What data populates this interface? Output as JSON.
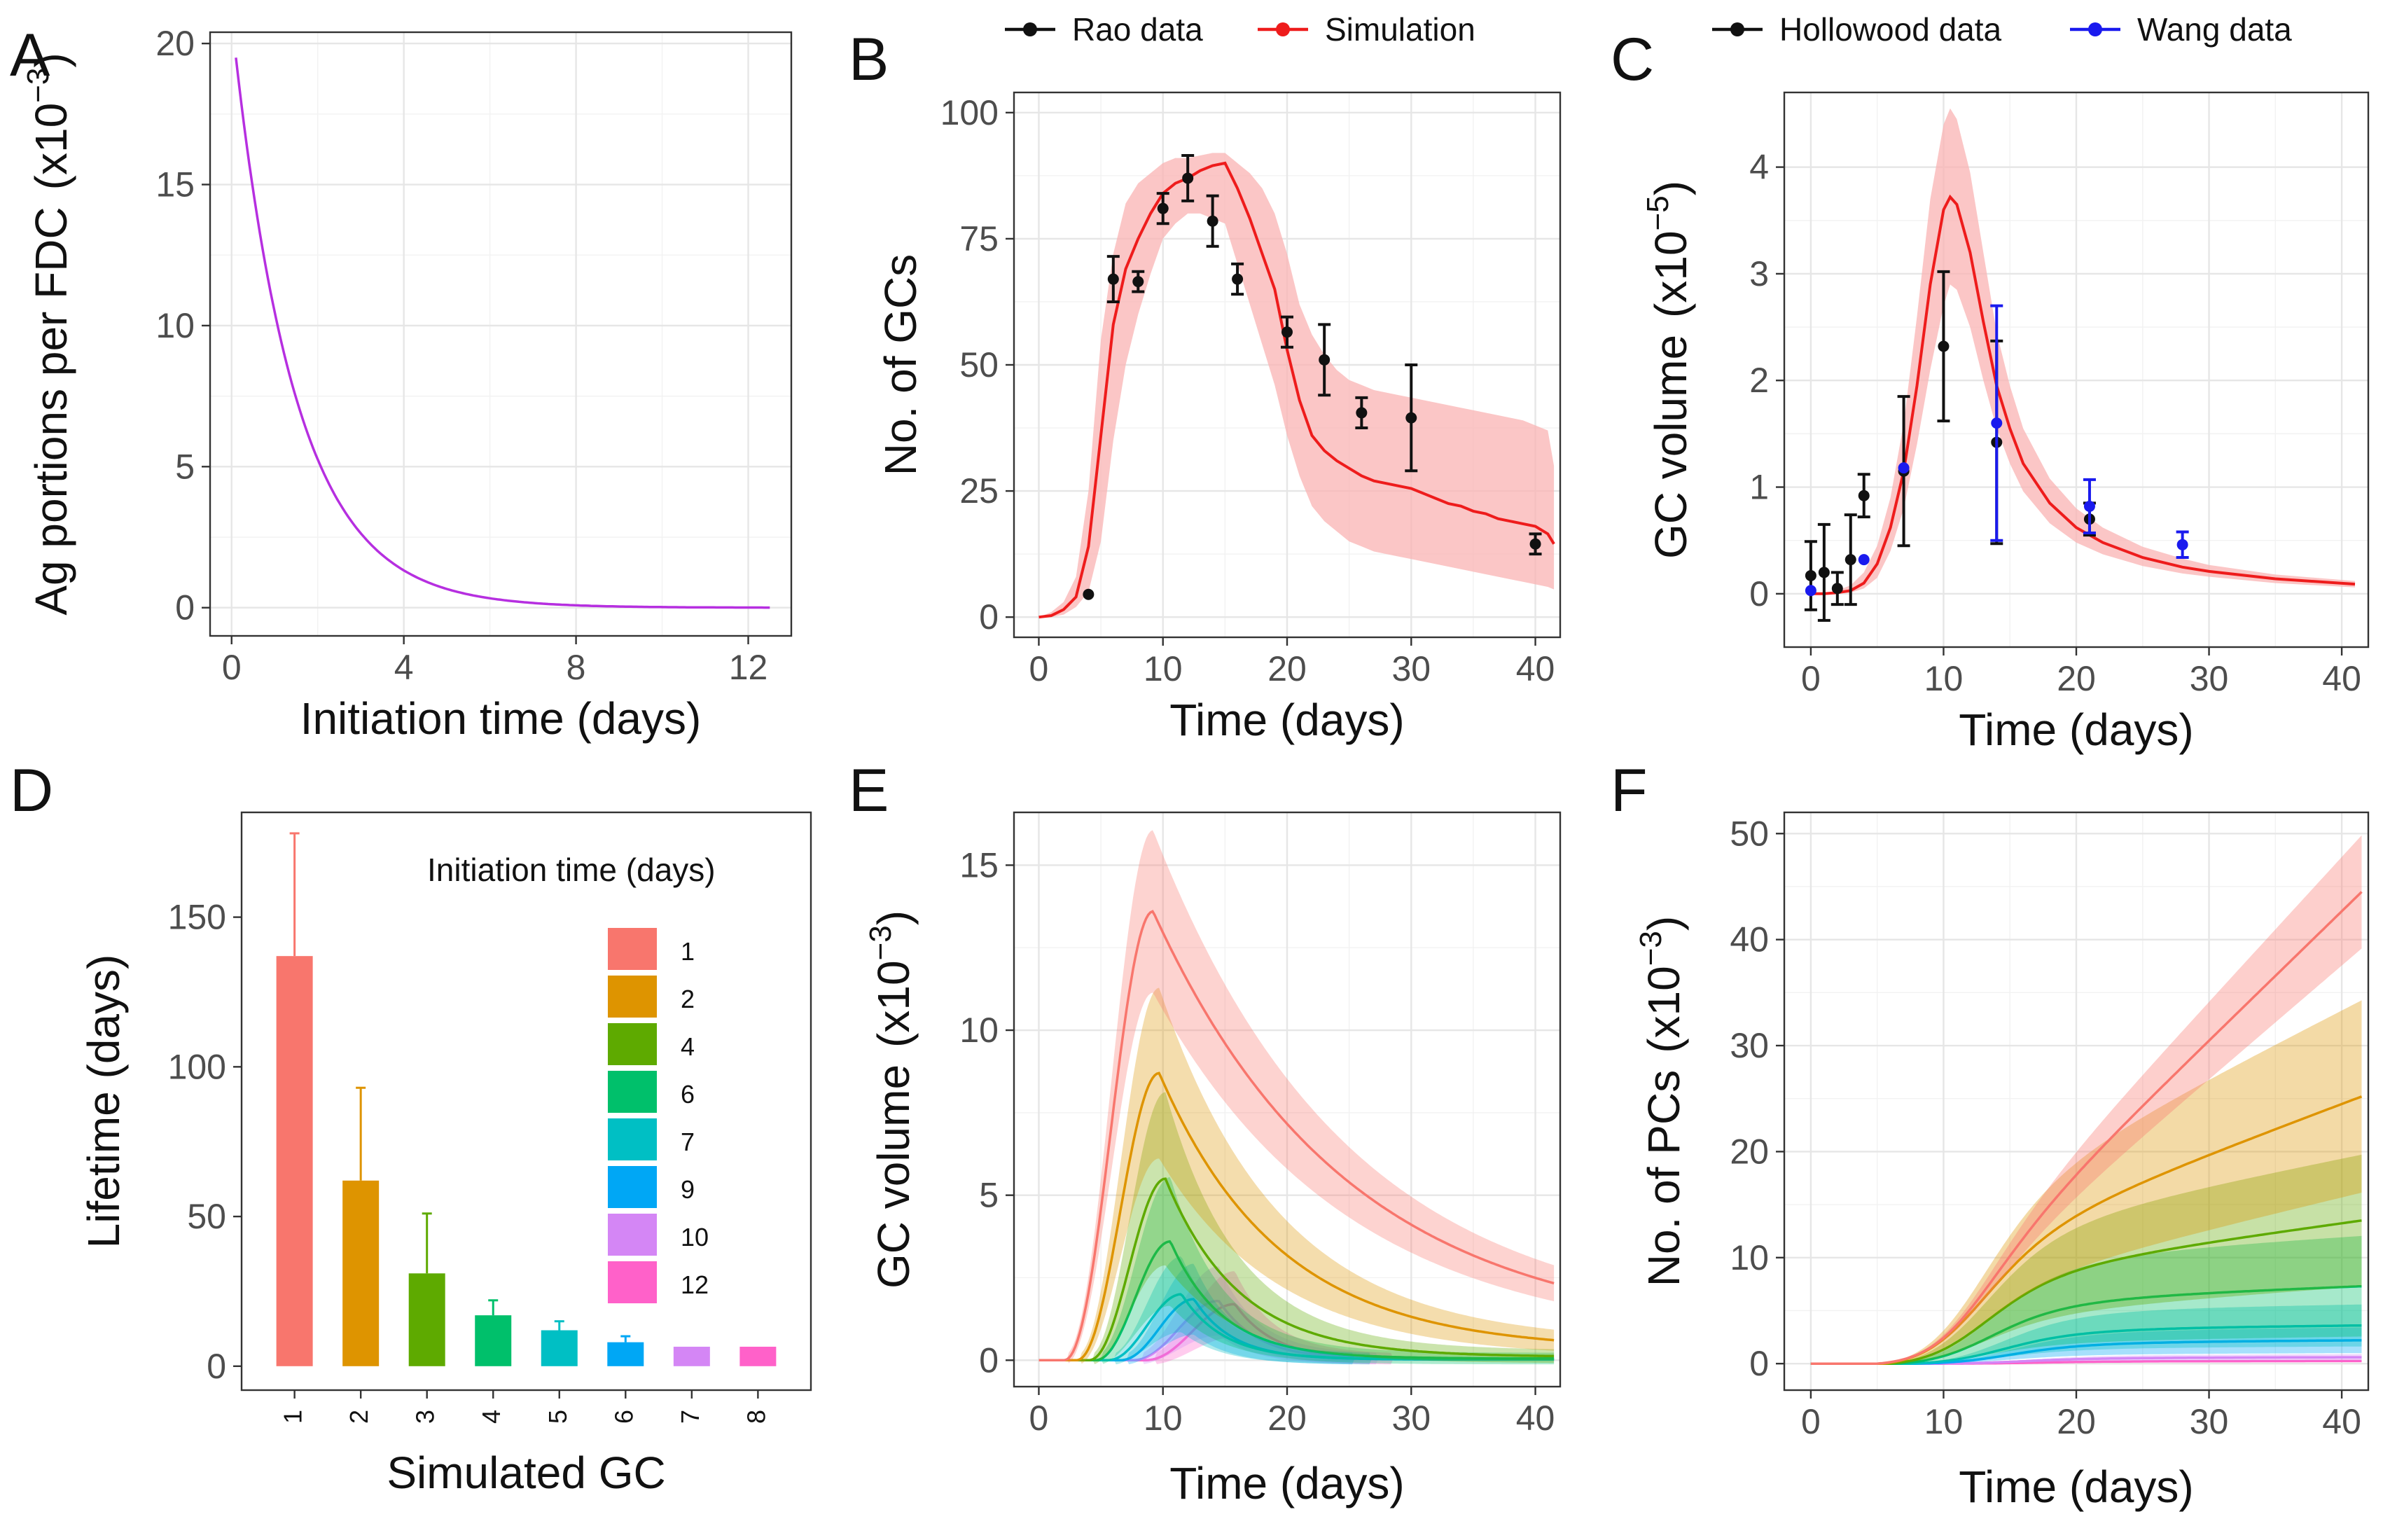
{
  "figure": {
    "panel_labels": [
      "A",
      "B",
      "C",
      "D",
      "E",
      "F"
    ]
  },
  "chart_data": [
    {
      "panel": "A",
      "type": "line",
      "title": "",
      "xlabel": "Initiation time (days)",
      "ylabel": "Ag portions per FDC",
      "ylabel_unit": "(x10",
      "ylabel_exp": "−3",
      "ylabel_close": ")",
      "xlim": [
        -0.5,
        13.0
      ],
      "ylim": [
        -1.0,
        20.4
      ],
      "xticks": [
        0,
        4,
        8,
        12
      ],
      "xtick_labels": [
        "0",
        "4",
        "8",
        "12"
      ],
      "yticks": [
        0,
        5,
        10,
        15,
        20
      ],
      "ytick_labels": [
        "0",
        "5",
        "10",
        "15",
        "20"
      ],
      "grid": true,
      "series": [
        {
          "name": "Ag portions",
          "color": "#b62fe0",
          "model": "exponential_decay",
          "y0": 19.5,
          "rate_per_day": 0.69,
          "x_start": 0.1,
          "x_end": 12.5
        }
      ]
    },
    {
      "panel": "B",
      "type": "line",
      "title": "",
      "xlabel": "Time (days)",
      "ylabel": "No. of GCs",
      "xlim": [
        -2,
        42
      ],
      "ylim": [
        -4,
        104
      ],
      "xticks": [
        0,
        10,
        20,
        30,
        40
      ],
      "xtick_labels": [
        "0",
        "10",
        "20",
        "30",
        "40"
      ],
      "yticks": [
        0,
        25,
        50,
        75,
        100
      ],
      "ytick_labels": [
        "0",
        "25",
        "50",
        "75",
        "100"
      ],
      "grid": true,
      "legend": {
        "position": "top",
        "entries": [
          "Rao data",
          "Simulation"
        ]
      },
      "series": [
        {
          "name": "Simulation",
          "color": "#ee1c1c",
          "band_color": "#f9b3b3",
          "x": [
            0,
            1,
            2,
            3,
            4,
            5,
            6,
            7,
            8,
            9,
            10,
            11,
            12,
            13,
            14,
            15,
            16,
            17,
            18,
            19,
            20,
            21,
            22,
            23,
            24,
            25,
            26,
            27,
            28,
            29,
            30,
            31,
            32,
            33,
            34,
            35,
            36,
            37,
            38,
            39,
            40,
            41,
            41.5
          ],
          "y": [
            0,
            0.3,
            1.5,
            4,
            14,
            36,
            58,
            69,
            75,
            80,
            84,
            86,
            87,
            88.5,
            89.5,
            90,
            85,
            79,
            72,
            65,
            53,
            43,
            36,
            33,
            31,
            29.5,
            28,
            27,
            26.5,
            26,
            25.5,
            24.5,
            23.5,
            22.5,
            22,
            21,
            20.5,
            19.5,
            19,
            18.5,
            18,
            16.5,
            14.5
          ],
          "lower": [
            0,
            0,
            0.5,
            2,
            5,
            15,
            35,
            50,
            60,
            68,
            75,
            78,
            80,
            80,
            79,
            78,
            70,
            62,
            54,
            46,
            36,
            28,
            22,
            19,
            17,
            15,
            14,
            13,
            12.5,
            12,
            11.5,
            11,
            10.5,
            10,
            9.5,
            9,
            8.5,
            8,
            7.5,
            7,
            6.5,
            6,
            5.5
          ],
          "upper": [
            0,
            1,
            3,
            8,
            25,
            55,
            72,
            82,
            86,
            88,
            90,
            91,
            91,
            91.5,
            92,
            92,
            90,
            88,
            85,
            80,
            72,
            62,
            56,
            52,
            49,
            47,
            46,
            45,
            44.5,
            44,
            43.5,
            43,
            42.5,
            42,
            41.5,
            41,
            40.5,
            40,
            39.5,
            39,
            38,
            37,
            30
          ]
        },
        {
          "name": "Rao data",
          "color": "#111111",
          "kind": "points_with_errorbars",
          "x": [
            4,
            6,
            8,
            10,
            12,
            14,
            16,
            20,
            23,
            26,
            30,
            40
          ],
          "y": [
            4.5,
            67,
            66.5,
            81,
            87,
            78.5,
            67,
            56.5,
            51,
            40.5,
            39.5,
            14.5
          ],
          "err": [
            0,
            4.5,
            2,
            3,
            4.5,
            5,
            3,
            3,
            7,
            3,
            10.5,
            2
          ]
        }
      ]
    },
    {
      "panel": "C",
      "type": "line",
      "title": "",
      "xlabel": "Time (days)",
      "ylabel": "GC volume",
      "ylabel_unit": "(x10",
      "ylabel_exp": "−5",
      "ylabel_close": ")",
      "xlim": [
        -2,
        42
      ],
      "ylim": [
        -0.5,
        4.7
      ],
      "xticks": [
        0,
        10,
        20,
        30,
        40
      ],
      "xtick_labels": [
        "0",
        "10",
        "20",
        "30",
        "40"
      ],
      "yticks": [
        0,
        1,
        2,
        3,
        4
      ],
      "ytick_labels": [
        "0",
        "1",
        "2",
        "3",
        "4"
      ],
      "grid": true,
      "legend": {
        "position": "top",
        "entries": [
          "Hollowood data",
          "Wang data"
        ]
      },
      "series": [
        {
          "name": "Simulation",
          "color": "#ee1c1c",
          "band_color": "#f9b3b3",
          "x": [
            0,
            1,
            2,
            3,
            4,
            5,
            6,
            7,
            8,
            9,
            10,
            10.5,
            11,
            12,
            13,
            14,
            15,
            16,
            18,
            20,
            22,
            25,
            28,
            30,
            35,
            41
          ],
          "y": [
            0,
            0,
            0.01,
            0.03,
            0.1,
            0.28,
            0.62,
            1.15,
            1.95,
            2.9,
            3.6,
            3.72,
            3.65,
            3.2,
            2.55,
            1.95,
            1.55,
            1.22,
            0.85,
            0.62,
            0.48,
            0.34,
            0.25,
            0.21,
            0.14,
            0.09
          ],
          "lower": [
            0,
            0,
            0,
            0.01,
            0.05,
            0.15,
            0.4,
            0.8,
            1.4,
            2.1,
            2.7,
            2.9,
            2.85,
            2.5,
            2.0,
            1.55,
            1.22,
            0.96,
            0.66,
            0.48,
            0.37,
            0.26,
            0.19,
            0.16,
            0.1,
            0.06
          ],
          "upper": [
            0,
            0,
            0.03,
            0.08,
            0.2,
            0.45,
            0.9,
            1.6,
            2.6,
            3.7,
            4.4,
            4.55,
            4.45,
            3.95,
            3.2,
            2.45,
            1.95,
            1.55,
            1.08,
            0.8,
            0.62,
            0.44,
            0.33,
            0.27,
            0.18,
            0.12
          ]
        },
        {
          "name": "Hollowood data",
          "color": "#111111",
          "kind": "points_with_errorbars",
          "x": [
            0,
            1,
            2,
            3,
            4,
            7,
            10,
            14,
            21
          ],
          "y": [
            0.17,
            0.2,
            0.05,
            0.32,
            0.92,
            1.15,
            2.32,
            1.42,
            0.7
          ],
          "err": [
            0.32,
            0.45,
            0.15,
            0.42,
            0.2,
            0.7,
            0.7,
            0.95,
            0.15
          ]
        },
        {
          "name": "Wang data",
          "color": "#1a1aee",
          "kind": "points_with_errorbars",
          "x": [
            0,
            4,
            7,
            14,
            21,
            28
          ],
          "y": [
            0.03,
            0.32,
            1.18,
            1.6,
            0.82,
            0.46
          ],
          "err": [
            0,
            0,
            0,
            1.1,
            0.25,
            0.12
          ]
        }
      ]
    },
    {
      "panel": "D",
      "type": "bar",
      "title": "",
      "xlabel": "Simulated GC",
      "ylabel": "Lifetime (days)",
      "ylim": [
        -8,
        185
      ],
      "categories": [
        "1",
        "2",
        "3",
        "4",
        "5",
        "6",
        "7",
        "8"
      ],
      "values": [
        137,
        62,
        31,
        17,
        12,
        8,
        6.5,
        6.5
      ],
      "errors": [
        41,
        31,
        20,
        5,
        3,
        2,
        0,
        0
      ],
      "colors": [
        "#f8766d",
        "#de9400",
        "#5eaa00",
        "#00c06b",
        "#00bfc4",
        "#00a7f5",
        "#d486f5",
        "#ff61c9"
      ],
      "yticks": [
        0,
        50,
        100,
        150
      ],
      "ytick_labels": [
        "0",
        "50",
        "100",
        "150"
      ],
      "grid": false,
      "legend": {
        "title": "Initiation time (days)",
        "position": "top-right",
        "entries": [
          "1",
          "2",
          "4",
          "6",
          "7",
          "9",
          "10",
          "12"
        ],
        "colors": [
          "#f8766d",
          "#de9400",
          "#5eaa00",
          "#00c06b",
          "#00bfc4",
          "#00a7f5",
          "#d486f5",
          "#ff61c9"
        ]
      }
    },
    {
      "panel": "E",
      "type": "line",
      "title": "",
      "xlabel": "Time (days)",
      "ylabel": "GC volume",
      "ylabel_unit": "(x10",
      "ylabel_exp": "−3",
      "ylabel_close": ")",
      "xlim": [
        -2,
        42
      ],
      "ylim": [
        -0.8,
        16.6
      ],
      "xticks": [
        0,
        10,
        20,
        30,
        40
      ],
      "xtick_labels": [
        "0",
        "10",
        "20",
        "30",
        "40"
      ],
      "yticks": [
        0,
        5,
        10,
        15
      ],
      "ytick_labels": [
        "0",
        "5",
        "10",
        "15"
      ],
      "grid": true,
      "series": [
        {
          "name": "1",
          "color": "#f8766d",
          "onset": 2.0,
          "peak_time": 9.2,
          "peak": 13.6,
          "decay": 0.064,
          "floor": 0.7,
          "band": 0.17
        },
        {
          "name": "2",
          "color": "#de9400",
          "onset": 3.0,
          "peak_time": 9.7,
          "peak": 8.7,
          "decay": 0.104,
          "floor": 0.3,
          "band": 0.28
        },
        {
          "name": "4",
          "color": "#5eaa00",
          "onset": 4.0,
          "peak_time": 10.2,
          "peak": 5.5,
          "decay": 0.17,
          "floor": 0.1,
          "band": 0.45
        },
        {
          "name": "6",
          "color": "#00c06b",
          "onset": 4.5,
          "peak_time": 10.6,
          "peak": 3.6,
          "decay": 0.24,
          "floor": 0.05,
          "band": 0.5
        },
        {
          "name": "7",
          "color": "#00bfc4",
          "onset": 5.5,
          "peak_time": 11.5,
          "peak": 2.0,
          "decay": 0.3,
          "floor": 0.03,
          "band": 0.5
        },
        {
          "name": "9",
          "color": "#00a7f5",
          "onset": 6.5,
          "peak_time": 12.5,
          "peak": 1.85,
          "decay": 0.32,
          "floor": 0.02,
          "band": 0.5
        },
        {
          "name": "10",
          "color": "#d486f5",
          "onset": 7.5,
          "peak_time": 14.5,
          "peak": 1.8,
          "decay": 0.32,
          "floor": 0.02,
          "band": 0.5
        },
        {
          "name": "12",
          "color": "#ff61c9",
          "onset": 8.5,
          "peak_time": 15.8,
          "peak": 1.7,
          "decay": 0.32,
          "floor": 0.02,
          "band": 0.5
        }
      ]
    },
    {
      "panel": "F",
      "type": "line",
      "title": "",
      "xlabel": "Time (days)",
      "ylabel": "No. of PCs",
      "ylabel_unit": "(x10",
      "ylabel_exp": "−3",
      "ylabel_close": ")",
      "xlim": [
        -2,
        42
      ],
      "ylim": [
        -2.5,
        52
      ],
      "xticks": [
        0,
        10,
        20,
        30,
        40
      ],
      "xtick_labels": [
        "0",
        "10",
        "20",
        "30",
        "40"
      ],
      "yticks": [
        0,
        10,
        20,
        30,
        40,
        50
      ],
      "ytick_labels": [
        "0",
        "10",
        "20",
        "30",
        "40",
        "50"
      ],
      "grid": true,
      "series": [
        {
          "name": "1",
          "color": "#f8766d",
          "final": 44.5,
          "onset": 5.0,
          "shape": 0.0,
          "band": 0.12
        },
        {
          "name": "2",
          "color": "#de9400",
          "final": 25.2,
          "onset": 5.5,
          "shape": 0.6,
          "band": 0.36
        },
        {
          "name": "4",
          "color": "#5eaa00",
          "final": 13.5,
          "onset": 6.0,
          "shape": 1.0,
          "band": 0.46
        },
        {
          "name": "6",
          "color": "#00c06b",
          "final": 7.3,
          "onset": 6.5,
          "shape": 1.4,
          "band": 0.65
        },
        {
          "name": "7",
          "color": "#00bfc4",
          "final": 3.6,
          "onset": 7.5,
          "shape": 1.6,
          "band": 0.55
        },
        {
          "name": "9",
          "color": "#00a7f5",
          "final": 2.2,
          "onset": 8.0,
          "shape": 1.6,
          "band": 0.55
        },
        {
          "name": "10",
          "color": "#d486f5",
          "final": 0.6,
          "onset": 9.0,
          "shape": 1.6,
          "band": 0.5
        },
        {
          "name": "12",
          "color": "#ff61c9",
          "final": 0.25,
          "onset": 10.0,
          "shape": 1.6,
          "band": 0.5
        }
      ]
    }
  ]
}
